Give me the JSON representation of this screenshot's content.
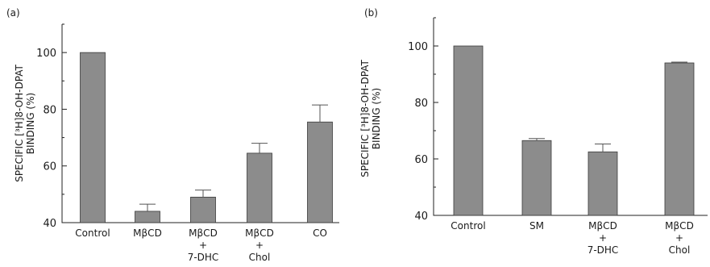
{
  "chart_data": [
    {
      "type": "bar",
      "panel_label": "(a)",
      "ylabel_line1": "SPECIFIC [³H]8-OH-DPAT",
      "ylabel_line2": "BINDING (%)",
      "xlabel": "",
      "ylim": [
        40,
        110
      ],
      "y_ticks": [
        40,
        60,
        80,
        100
      ],
      "y_tick_labels": [
        "40",
        "60",
        "80",
        "100"
      ],
      "categories": [
        [
          "Control"
        ],
        [
          "MβCD"
        ],
        [
          "MβCD",
          "+",
          "7-DHC"
        ],
        [
          "MβCD",
          "+",
          "Chol"
        ],
        [
          "CO"
        ]
      ],
      "values": [
        100,
        44,
        49,
        64.5,
        75.5
      ],
      "errors": [
        0,
        2.5,
        2.5,
        3.5,
        6
      ],
      "bar_color": "#8c8c8c",
      "grid": false
    },
    {
      "type": "bar",
      "panel_label": "(b)",
      "ylabel_line1": "SPECIFIC [³H]8-OH-DPAT",
      "ylabel_line2": "BINDING (%)",
      "xlabel": "",
      "ylim": [
        40,
        110
      ],
      "y_ticks": [
        40,
        60,
        80,
        100
      ],
      "y_tick_labels": [
        "40",
        "60",
        "80",
        "100"
      ],
      "categories": [
        [
          "Control"
        ],
        [
          "SM"
        ],
        [
          "MβCD",
          "+",
          "7-DHC"
        ],
        [
          "MβCD",
          "+",
          "Chol"
        ]
      ],
      "values": [
        100,
        66.5,
        62.5,
        94
      ],
      "errors": [
        0,
        0.7,
        2.8,
        0.3
      ],
      "bar_color": "#8c8c8c",
      "grid": false
    }
  ]
}
